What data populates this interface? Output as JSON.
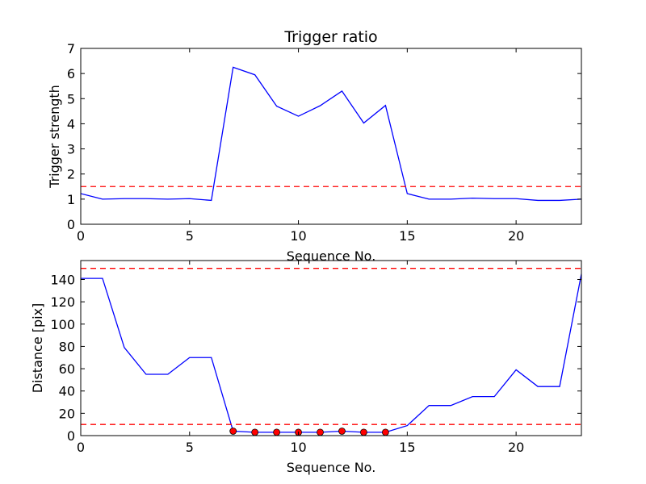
{
  "chart_data": [
    {
      "type": "line",
      "title": "Trigger ratio",
      "xlabel": "Sequence No.",
      "ylabel": "Trigger strength",
      "xlim": [
        0,
        23
      ],
      "ylim": [
        0,
        7
      ],
      "xticks": [
        "0",
        "5",
        "10",
        "15",
        "20"
      ],
      "yticks": [
        "0",
        "1",
        "2",
        "3",
        "4",
        "5",
        "6",
        "7"
      ],
      "grid": false,
      "series": [
        {
          "color": "#0000ff",
          "style": "solid",
          "x": [
            0,
            1,
            2,
            3,
            4,
            5,
            6,
            7,
            8,
            9,
            10,
            11,
            12,
            13,
            14,
            15,
            16,
            17,
            18,
            19,
            20,
            21,
            22,
            23
          ],
          "values": [
            1.22,
            1.0,
            1.02,
            1.02,
            1.0,
            1.02,
            0.95,
            6.25,
            5.95,
            4.7,
            4.3,
            4.72,
            5.3,
            4.03,
            4.73,
            1.22,
            1.0,
            1.0,
            1.04,
            1.02,
            1.02,
            0.95,
            0.95,
            1.0
          ]
        },
        {
          "color": "#ff0000",
          "style": "dashed",
          "x": [
            0,
            23
          ],
          "values": [
            1.5,
            1.5
          ]
        }
      ]
    },
    {
      "type": "line",
      "title": "",
      "xlabel": "Sequence No.",
      "ylabel": "Distance [pix]",
      "xlim": [
        0,
        23
      ],
      "ylim": [
        0,
        157
      ],
      "xticks": [
        "0",
        "5",
        "10",
        "15",
        "20"
      ],
      "yticks": [
        "0",
        "20",
        "40",
        "60",
        "80",
        "100",
        "120",
        "140"
      ],
      "grid": false,
      "series": [
        {
          "color": "#0000ff",
          "style": "solid",
          "x": [
            0,
            1,
            2,
            3,
            4,
            5,
            6,
            7,
            8,
            9,
            10,
            11,
            12,
            13,
            14,
            15,
            16,
            17,
            18,
            19,
            20,
            21,
            22,
            23
          ],
          "values": [
            141,
            141,
            79,
            55,
            55,
            70,
            70,
            4,
            3,
            3,
            3,
            3,
            4,
            3,
            3,
            9,
            27,
            27,
            35,
            35,
            59,
            44,
            44,
            145
          ]
        },
        {
          "color": "#ff0000",
          "style": "dashed",
          "x": [
            0,
            23
          ],
          "values": [
            150,
            150
          ]
        },
        {
          "color": "#ff0000",
          "style": "dashed",
          "x": [
            0,
            23
          ],
          "values": [
            10,
            10
          ]
        },
        {
          "color": "#ff0000",
          "style": "markers",
          "x": [
            7,
            8,
            9,
            10,
            11,
            12,
            13,
            14
          ],
          "values": [
            4,
            3,
            3,
            3,
            3,
            4,
            3,
            3
          ]
        }
      ]
    }
  ]
}
